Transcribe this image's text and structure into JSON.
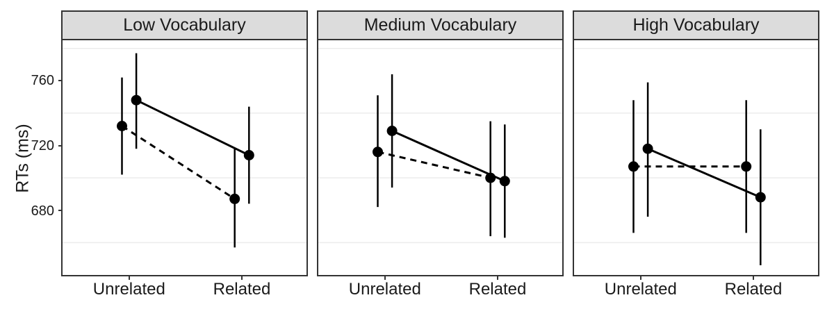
{
  "chart_data": {
    "type": "line",
    "title": "",
    "xlabel": "",
    "ylabel": "RTs (ms)",
    "x_categories": [
      "Unrelated",
      "Related"
    ],
    "y_ticks": [
      "760",
      "720",
      "680"
    ],
    "y_gridlines": [
      780,
      740,
      700,
      660
    ],
    "ylim": [
      640,
      785
    ],
    "grid": "horizontal-only",
    "legend_position": "none",
    "facets": [
      {
        "label": "Low Vocabulary",
        "series": [
          {
            "name": "dashed-series",
            "linestyle": "dashed",
            "dodge": "left",
            "points": [
              {
                "x": "Unrelated",
                "y": 732,
                "ci": [
                  702,
                  762
                ]
              },
              {
                "x": "Related",
                "y": 687,
                "ci": [
                  657,
                  718
                ]
              }
            ]
          },
          {
            "name": "solid-series",
            "linestyle": "solid",
            "dodge": "right",
            "points": [
              {
                "x": "Unrelated",
                "y": 748,
                "ci": [
                  718,
                  777
                ]
              },
              {
                "x": "Related",
                "y": 714,
                "ci": [
                  684,
                  744
                ]
              }
            ]
          }
        ]
      },
      {
        "label": "Medium Vocabulary",
        "series": [
          {
            "name": "dashed-series",
            "linestyle": "dashed",
            "dodge": "left",
            "points": [
              {
                "x": "Unrelated",
                "y": 716,
                "ci": [
                  682,
                  751
                ]
              },
              {
                "x": "Related",
                "y": 700,
                "ci": [
                  664,
                  735
                ]
              }
            ]
          },
          {
            "name": "solid-series",
            "linestyle": "solid",
            "dodge": "right",
            "points": [
              {
                "x": "Unrelated",
                "y": 729,
                "ci": [
                  694,
                  764
                ]
              },
              {
                "x": "Related",
                "y": 698,
                "ci": [
                  663,
                  733
                ]
              }
            ]
          }
        ]
      },
      {
        "label": "High Vocabulary",
        "series": [
          {
            "name": "dashed-series",
            "linestyle": "dashed",
            "dodge": "left",
            "points": [
              {
                "x": "Unrelated",
                "y": 707,
                "ci": [
                  666,
                  748
                ]
              },
              {
                "x": "Related",
                "y": 707,
                "ci": [
                  666,
                  748
                ]
              }
            ]
          },
          {
            "name": "solid-series",
            "linestyle": "solid",
            "dodge": "right",
            "points": [
              {
                "x": "Unrelated",
                "y": 718,
                "ci": [
                  676,
                  759
                ]
              },
              {
                "x": "Related",
                "y": 688,
                "ci": [
                  646,
                  730
                ]
              }
            ]
          }
        ]
      }
    ],
    "colors": {
      "data": "#000000",
      "strip_fill": "#dcdcdc",
      "strip_border": "#333333",
      "panel_border": "#333333",
      "gridline": "#ececec",
      "background": "#ffffff",
      "text": "#1a1a1a"
    }
  }
}
